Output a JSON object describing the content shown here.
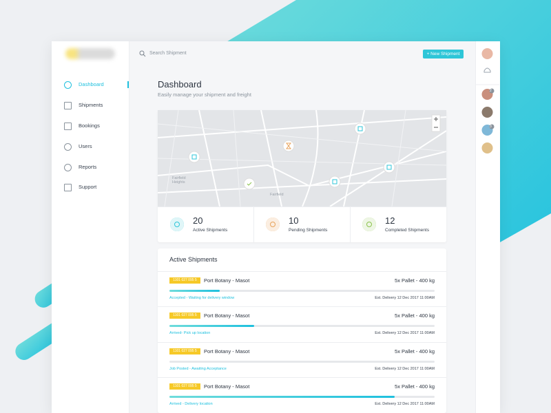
{
  "search": {
    "placeholder": "Search Shipment"
  },
  "new_button": "+ New Shipment",
  "nav": [
    {
      "label": "Dashboard"
    },
    {
      "label": "Shipments"
    },
    {
      "label": "Bookings"
    },
    {
      "label": "Users"
    },
    {
      "label": "Reports"
    },
    {
      "label": "Support"
    }
  ],
  "header": {
    "title": "Dashboard",
    "subtitle": "Easily manage your shipment and freight"
  },
  "map": {
    "labels": [
      "Fairfield Heights",
      "Fairfield"
    ]
  },
  "stats": [
    {
      "value": "20",
      "label": "Active Shipments"
    },
    {
      "value": "10",
      "label": "Pending Shipments"
    },
    {
      "value": "12",
      "label": "Completed Shipments"
    }
  ],
  "shipments": {
    "title": "Active Shipments",
    "rows": [
      {
        "id": "1101 027 095 5",
        "route": "Port Botany - Masot",
        "load": "5x Pallet - 400 kg",
        "progress": 0.19,
        "status": "Accepted - Waiting for delivery window",
        "eta": "Est. Delivery 12 Dec 2017 11:00AM"
      },
      {
        "id": "1101 027 095 5",
        "route": "Port Botany - Masot",
        "load": "5x Pallet - 400 kg",
        "progress": 0.32,
        "status": "Arrived- Pick up location",
        "eta": "Est. Delivery 12 Dec 2017 11:00AM"
      },
      {
        "id": "1101 027 095 5",
        "route": "Port Botany - Masot",
        "load": "5x Pallet - 400 kg",
        "progress": 0,
        "status": "Job Posted - Awaiting Acceptance",
        "eta": "Est. Delivery 12 Dec 2017 11:00AM"
      },
      {
        "id": "1101 027 095 5",
        "route": "Port Botany - Masot",
        "load": "5x Pallet - 400 kg",
        "progress": 0.85,
        "status": "Arrived - Delivery location",
        "eta": "Est. Delivery 12 Dec 2017 11:00AM"
      }
    ]
  },
  "avatar_badges": [
    "2",
    "3"
  ]
}
